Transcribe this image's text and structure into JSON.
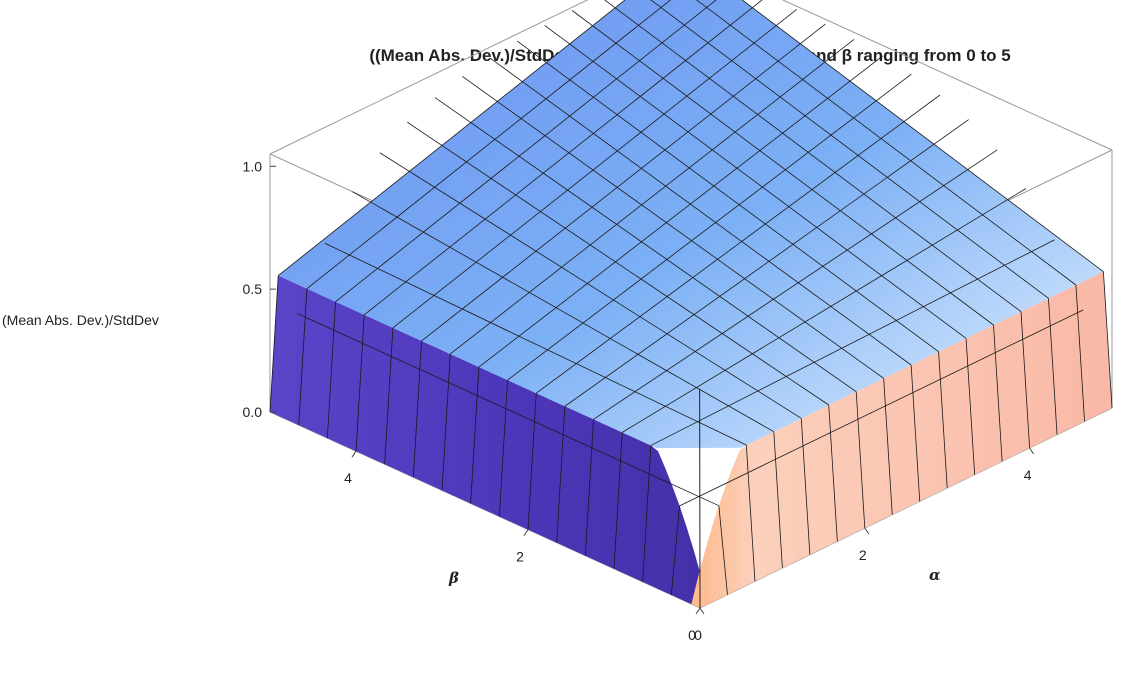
{
  "chart_data": {
    "type": "surface3d",
    "title": "((Mean Abs. Dev.)/StdDev) for Beta Distribution with α and β ranging from 0 to 5",
    "xlabel": "α",
    "ylabel": "β",
    "zlabel": "(Mean Abs. Dev.)/StdDev",
    "xlim": [
      0,
      5
    ],
    "ylim": [
      0,
      5
    ],
    "zlim": [
      0,
      1.05
    ],
    "x_ticks": [
      "0",
      "2",
      "4"
    ],
    "y_ticks": [
      "0",
      "2",
      "4"
    ],
    "z_ticks": [
      "0.0",
      "0.5",
      "1.0"
    ],
    "surface_samples": [
      {
        "alpha": 0,
        "beta": 0,
        "z": 0.0
      },
      {
        "alpha": 0.05,
        "beta": 5,
        "z": 0.75
      },
      {
        "alpha": 0.5,
        "beta": 0.5,
        "z": 0.72
      },
      {
        "alpha": 1,
        "beta": 1,
        "z": 0.87
      },
      {
        "alpha": 2,
        "beta": 2,
        "z": 0.8
      },
      {
        "alpha": 5,
        "beta": 5,
        "z": 0.8
      }
    ],
    "mesh_lines_per_axis": 15,
    "colors": {
      "low": "#4a34b0",
      "mid": "#7aa8f0",
      "high": "#ffd8c8",
      "mesh": "#1a1a1a"
    }
  }
}
